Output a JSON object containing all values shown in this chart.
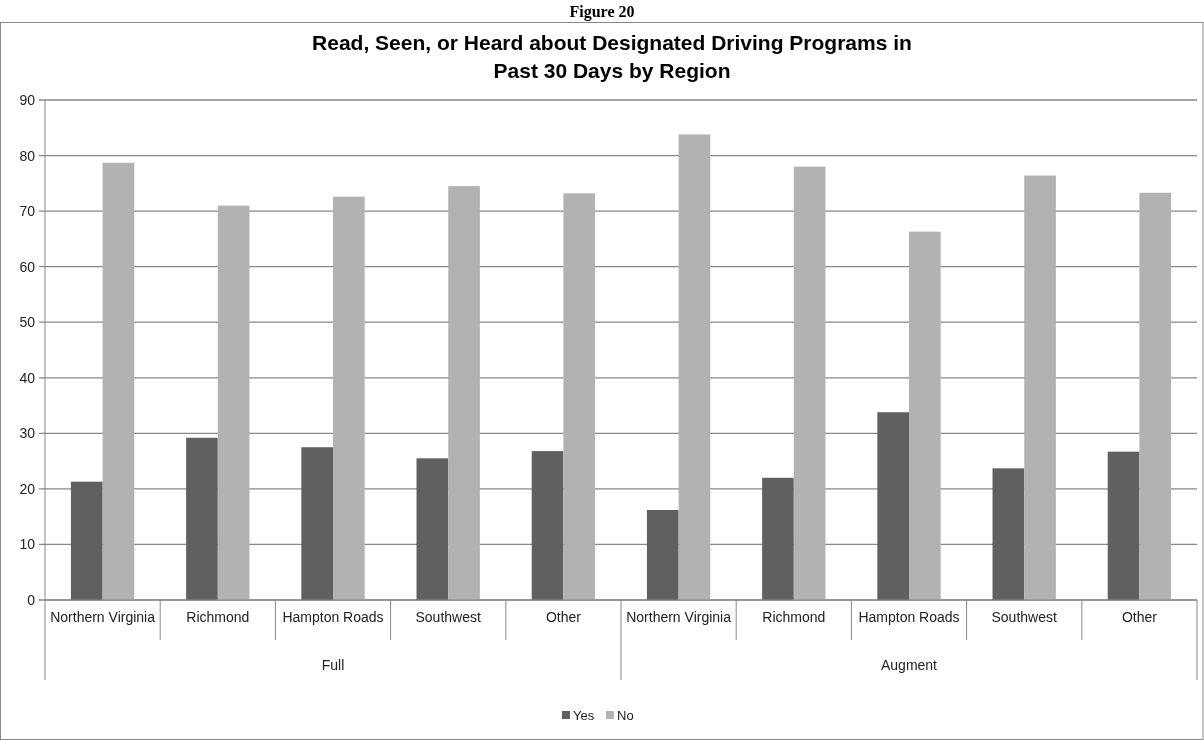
{
  "chart_data": {
    "type": "bar",
    "title": "Read, Seen, or Heard about Designated Driving Programs in\nPast 30 Days by Region",
    "categories": [
      "Northern Virginia",
      "Richmond",
      "Hampton Roads",
      "Southwest",
      "Other",
      "Northern Virginia",
      "Richmond",
      "Hampton Roads",
      "Southwest",
      "Other"
    ],
    "series": [
      {
        "name": "Yes",
        "color": "#606060",
        "values": [
          21.3,
          29.2,
          27.5,
          25.5,
          26.8,
          16.2,
          22,
          33.8,
          23.7,
          26.7
        ]
      },
      {
        "name": "No",
        "color": "#b2b2b2",
        "values": [
          78.7,
          71,
          72.6,
          74.5,
          73.2,
          83.8,
          78,
          66.3,
          76.4,
          73.3
        ]
      }
    ],
    "annotations": [
      "Figure 20",
      "Full",
      "Augment"
    ],
    "ylim": [
      0,
      90
    ],
    "yticks": [
      0,
      10,
      20,
      30,
      40,
      50,
      60,
      70,
      80,
      90
    ],
    "grid": "y",
    "legend": "bottom"
  }
}
